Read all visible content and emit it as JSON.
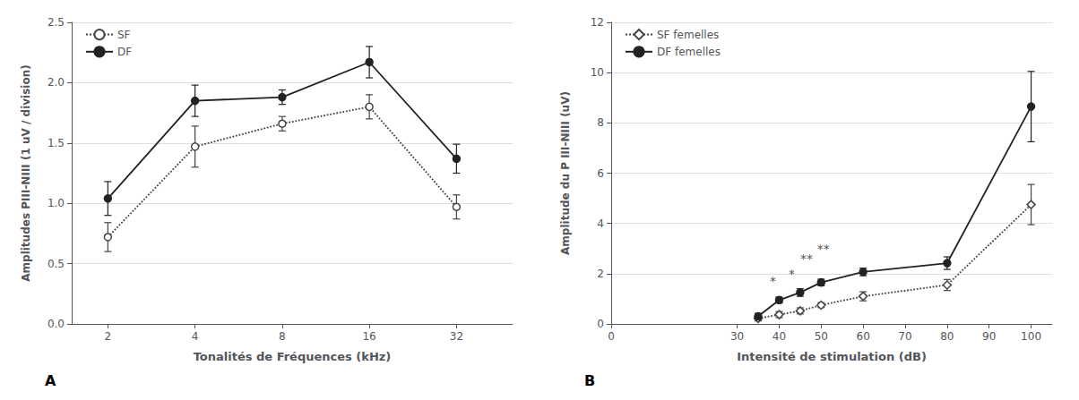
{
  "chart_data": [
    {
      "type": "line",
      "panel_label": "A",
      "xlabel": "Tonalités de Fréquences (kHz)",
      "ylabel": "Amplitudes PIII-NIII (1 uV / division)",
      "log": "x",
      "xlim": [
        1.5,
        50
      ],
      "xticks": [
        2,
        4,
        8,
        16,
        32
      ],
      "ylim": [
        0.0,
        2.5
      ],
      "yticks": [
        {
          "value": 0.0,
          "label": "0.0"
        },
        {
          "value": 0.5,
          "label": "0.5"
        },
        {
          "value": 1.0,
          "label": "1.0"
        },
        {
          "value": 1.5,
          "label": "1.5"
        },
        {
          "value": 2.0,
          "label": "2.0"
        },
        {
          "value": 2.5,
          "label": "2.5"
        }
      ],
      "grid": true,
      "legend": "upper left",
      "series": [
        {
          "name": "SF",
          "x": [
            2,
            4,
            8,
            16,
            32
          ],
          "values": [
            0.72,
            1.47,
            1.66,
            1.8,
            0.97
          ],
          "errors": [
            0.12,
            0.17,
            0.06,
            0.1,
            0.1
          ],
          "color": "#444444",
          "line_style": "dotted",
          "marker": "circle-open"
        },
        {
          "name": "DF",
          "x": [
            2,
            4,
            8,
            16,
            32
          ],
          "values": [
            1.04,
            1.85,
            1.88,
            2.17,
            1.37
          ],
          "errors": [
            0.14,
            0.13,
            0.06,
            0.13,
            0.12
          ],
          "color": "#222222",
          "line_style": "solid",
          "marker": "circle"
        }
      ]
    },
    {
      "type": "line",
      "panel_label": "B",
      "xlabel": "Intensité de stimulation (dB)",
      "ylabel": "Amplitude du P III-NIII (uV)",
      "xlim": [
        0,
        105
      ],
      "xticks": [
        0,
        30,
        40,
        50,
        60,
        70,
        80,
        90,
        100
      ],
      "ylim": [
        0,
        12
      ],
      "yticks": [
        0,
        2,
        4,
        6,
        8,
        10,
        12
      ],
      "grid": true,
      "legend": "upper left",
      "series": [
        {
          "name": "SF femelles",
          "x": [
            35,
            40,
            45,
            50,
            60,
            80,
            100
          ],
          "values": [
            0.22,
            0.37,
            0.52,
            0.75,
            1.1,
            1.55,
            4.75
          ],
          "errors": [
            0.1,
            0.12,
            0.12,
            0.1,
            0.18,
            0.22,
            0.8
          ],
          "color": "#444444",
          "line_style": "dotted",
          "marker": "diamond-open"
        },
        {
          "name": "DF femelles",
          "x": [
            35,
            40,
            45,
            50,
            60,
            80,
            100
          ],
          "values": [
            0.3,
            0.95,
            1.25,
            1.65,
            2.07,
            2.42,
            8.65
          ],
          "errors": [
            0.12,
            0.12,
            0.15,
            0.13,
            0.15,
            0.25,
            1.4
          ],
          "color": "#222222",
          "line_style": "solid",
          "marker": "circle"
        }
      ],
      "annotations": [
        {
          "x": 38.5,
          "y": 1.42,
          "text": "*"
        },
        {
          "x": 43.0,
          "y": 1.7,
          "text": "*"
        },
        {
          "x": 46.5,
          "y": 2.3,
          "text": "**"
        },
        {
          "x": 50.5,
          "y": 2.72,
          "text": "**"
        }
      ]
    }
  ]
}
